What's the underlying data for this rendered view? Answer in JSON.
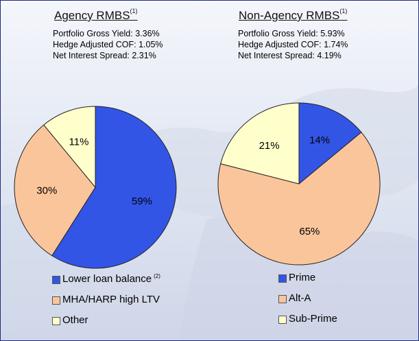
{
  "panels": [
    {
      "title": "Agency RMBS",
      "footnote": "(1)",
      "stats": [
        "Portfolio Gross Yield: 3.36%",
        "Hedge Adjusted COF: 1.05%",
        "Net Interest Spread: 2.31%"
      ],
      "legend": [
        {
          "label": "Lower loan balance",
          "footnote": "(2)"
        },
        {
          "label": "MHA/HARP high LTV",
          "footnote": ""
        },
        {
          "label": "Other",
          "footnote": ""
        }
      ]
    },
    {
      "title": "Non-Agency RMBS",
      "footnote": "(1)",
      "stats": [
        "Portfolio Gross Yield: 5.93%",
        "Hedge Adjusted COF: 1.74%",
        "Net Interest Spread: 4.19%"
      ],
      "legend": [
        {
          "label": "Prime",
          "footnote": ""
        },
        {
          "label": "Alt-A",
          "footnote": ""
        },
        {
          "label": "Sub-Prime",
          "footnote": ""
        }
      ]
    }
  ],
  "chart_data": [
    {
      "type": "pie",
      "title": "Agency RMBS",
      "categories": [
        "Lower loan balance",
        "MHA/HARP high LTV",
        "Other"
      ],
      "values": [
        59,
        30,
        11
      ],
      "labels": [
        "59%",
        "30%",
        "11%"
      ],
      "colors": [
        "#3355e6",
        "#fbc59c",
        "#ffffcc"
      ],
      "legend_position": "bottom"
    },
    {
      "type": "pie",
      "title": "Non-Agency RMBS",
      "categories": [
        "Prime",
        "Alt-A",
        "Sub-Prime"
      ],
      "values": [
        14,
        65,
        21
      ],
      "labels": [
        "14%",
        "65%",
        "21%"
      ],
      "colors": [
        "#3355e6",
        "#fbc59c",
        "#ffffcc"
      ],
      "legend_position": "bottom"
    }
  ]
}
